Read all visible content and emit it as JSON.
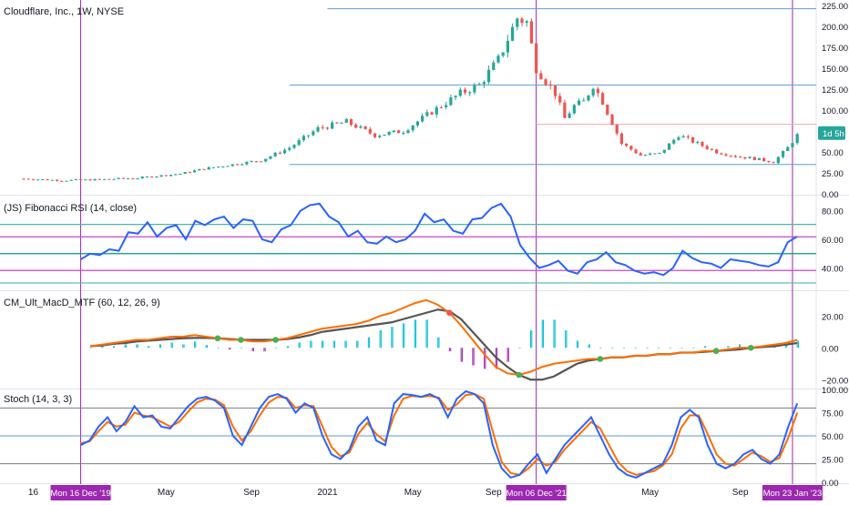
{
  "chart_data": [
    {
      "type": "candlestick",
      "title": "Cloudflare, Inc., 1W, NYSE",
      "ylim": [
        0,
        225
      ],
      "y_ticks": [
        0,
        25,
        50,
        75,
        100,
        125,
        150,
        175,
        200,
        225
      ],
      "y_tick_labels": [
        "0.00",
        "25.00",
        "50.00",
        "75.00",
        "100.00",
        "125.00",
        "150.00",
        "175.00",
        "200.00",
        "225.00"
      ],
      "countdown_label": "1d 5h",
      "last_value": 72,
      "hlines": [
        {
          "value": 221,
          "color": "#5b9bd5"
        },
        {
          "value": 130,
          "color": "#5b9bd5"
        },
        {
          "value": 83,
          "color": "#f4a6a6"
        },
        {
          "value": 35,
          "color": "#5b9bd5"
        }
      ],
      "series_close": [
        {
          "t": 0,
          "v": 18
        },
        {
          "t": 8,
          "v": 16
        },
        {
          "t": 16,
          "v": 17
        },
        {
          "t": 24,
          "v": 19
        },
        {
          "t": 33,
          "v": 24
        },
        {
          "t": 38,
          "v": 30
        },
        {
          "t": 44,
          "v": 35
        },
        {
          "t": 50,
          "v": 40
        },
        {
          "t": 56,
          "v": 55
        },
        {
          "t": 62,
          "v": 78
        },
        {
          "t": 68,
          "v": 86
        },
        {
          "t": 74,
          "v": 70
        },
        {
          "t": 80,
          "v": 75
        },
        {
          "t": 86,
          "v": 98
        },
        {
          "t": 92,
          "v": 120
        },
        {
          "t": 96,
          "v": 130
        },
        {
          "t": 100,
          "v": 160
        },
        {
          "t": 104,
          "v": 210
        },
        {
          "t": 106,
          "v": 205
        },
        {
          "t": 108,
          "v": 150
        },
        {
          "t": 112,
          "v": 120
        },
        {
          "t": 114,
          "v": 90
        },
        {
          "t": 116,
          "v": 105
        },
        {
          "t": 118,
          "v": 110
        },
        {
          "t": 120,
          "v": 130
        },
        {
          "t": 122,
          "v": 110
        },
        {
          "t": 126,
          "v": 60
        },
        {
          "t": 130,
          "v": 46
        },
        {
          "t": 134,
          "v": 48
        },
        {
          "t": 138,
          "v": 70
        },
        {
          "t": 142,
          "v": 60
        },
        {
          "t": 146,
          "v": 50
        },
        {
          "t": 150,
          "v": 45
        },
        {
          "t": 154,
          "v": 42
        },
        {
          "t": 158,
          "v": 38
        },
        {
          "t": 161,
          "v": 55
        },
        {
          "t": 163,
          "v": 70
        }
      ]
    },
    {
      "type": "line",
      "title": "(JS) Fibonacci RSI (14, close)",
      "ylim": [
        25,
        90
      ],
      "y_ticks": [
        40,
        60,
        80
      ],
      "y_tick_labels": [
        "40.00",
        "60.00",
        "80.00"
      ],
      "hlines": [
        {
          "value": 70.5,
          "color": "#4db6ac"
        },
        {
          "value": 61.8,
          "color": "#cc44cc"
        },
        {
          "value": 50,
          "color": "#009688"
        },
        {
          "value": 38.2,
          "color": "#cc44cc"
        },
        {
          "value": 29.5,
          "color": "#4db6ac"
        }
      ],
      "series": [
        {
          "values": [
            46,
            50,
            49,
            53,
            52,
            65,
            64,
            72,
            62,
            68,
            70,
            60,
            73,
            70,
            74,
            76,
            68,
            74,
            73,
            60,
            58,
            67,
            70,
            80,
            84,
            85,
            76,
            72,
            62,
            66,
            58,
            57,
            62,
            58,
            60,
            66,
            78,
            72,
            74,
            66,
            64,
            74,
            75,
            82,
            85,
            76,
            56,
            47,
            40,
            42,
            45,
            38,
            36,
            44,
            46,
            51,
            44,
            42,
            38,
            36,
            37,
            35,
            40,
            52,
            47,
            44,
            43,
            40,
            46,
            45,
            44,
            42,
            41,
            44,
            58,
            62
          ]
        }
      ]
    },
    {
      "type": "line",
      "title": "CM_Ult_MacD_MTF (60, 12, 26, 9)",
      "ylim": [
        -25,
        35
      ],
      "y_ticks": [
        -20,
        0,
        20
      ],
      "y_tick_labels": [
        "−20.00",
        "0.00",
        "20.00"
      ],
      "series": [
        {
          "values": [
            1,
            2,
            3,
            4,
            5,
            5,
            6,
            7,
            7,
            8,
            7,
            6,
            5,
            5,
            4,
            4,
            5,
            6,
            8,
            10,
            12,
            13,
            14,
            15,
            17,
            20,
            22,
            25,
            28,
            30,
            27,
            22,
            14,
            5,
            -4,
            -12,
            -16,
            -17,
            -15,
            -12,
            -10,
            -9,
            -8,
            -7,
            -7,
            -6,
            -6,
            -5,
            -5,
            -4,
            -4,
            -3,
            -3,
            -2,
            -2,
            -1,
            0,
            0,
            1,
            2,
            3,
            5
          ]
        },
        {
          "values": [
            1,
            1.5,
            2.5,
            3,
            4,
            4.5,
            5,
            5.5,
            6,
            6.2,
            6.2,
            6,
            5.5,
            5,
            5,
            5,
            5,
            5.5,
            6.5,
            8,
            10,
            11,
            12,
            13,
            14,
            15,
            16,
            18,
            20,
            22,
            24,
            23,
            18,
            10,
            2,
            -6,
            -12,
            -17,
            -20,
            -20,
            -18,
            -14,
            -10,
            -8,
            -7,
            -6,
            -6,
            -5,
            -5,
            -4,
            -4,
            -3,
            -3,
            -2.5,
            -2,
            -1.5,
            -1,
            0,
            0.5,
            1,
            2,
            3
          ]
        }
      ]
    },
    {
      "type": "line",
      "title": "Stoch (14, 3, 3)",
      "ylim": [
        0,
        100
      ],
      "y_ticks": [
        0,
        25,
        50,
        75,
        100
      ],
      "y_tick_labels": [
        "0.00",
        "25.00",
        "50.00",
        "75.00",
        "100.00"
      ],
      "hlines": [
        {
          "value": 80,
          "color": "#787b86"
        },
        {
          "value": 50,
          "color": "#5b9bd5"
        },
        {
          "value": 20,
          "color": "#787b86"
        }
      ],
      "series": [
        {
          "values": [
            40,
            45,
            60,
            70,
            55,
            65,
            82,
            70,
            72,
            60,
            58,
            70,
            82,
            90,
            92,
            88,
            80,
            50,
            40,
            60,
            80,
            92,
            95,
            90,
            75,
            85,
            80,
            50,
            30,
            25,
            35,
            60,
            70,
            45,
            40,
            85,
            95,
            94,
            92,
            95,
            90,
            70,
            90,
            98,
            95,
            85,
            40,
            15,
            5,
            8,
            20,
            30,
            10,
            25,
            40,
            50,
            60,
            70,
            50,
            30,
            15,
            8,
            5,
            10,
            15,
            20,
            40,
            70,
            78,
            70,
            40,
            20,
            15,
            20,
            30,
            35,
            25,
            20,
            30,
            60,
            85
          ]
        },
        {
          "values": [
            42,
            44,
            55,
            65,
            60,
            62,
            75,
            72,
            70,
            65,
            60,
            65,
            76,
            86,
            90,
            89,
            83,
            60,
            45,
            55,
            72,
            86,
            92,
            91,
            80,
            83,
            82,
            60,
            38,
            28,
            32,
            52,
            64,
            52,
            44,
            72,
            90,
            93,
            92,
            93,
            91,
            78,
            84,
            94,
            95,
            90,
            55,
            22,
            10,
            8,
            15,
            25,
            18,
            22,
            35,
            45,
            55,
            65,
            58,
            40,
            22,
            12,
            8,
            10,
            12,
            18,
            30,
            58,
            72,
            72,
            52,
            30,
            20,
            18,
            25,
            32,
            28,
            22,
            26,
            48,
            75
          ]
        }
      ]
    }
  ],
  "x_axis": {
    "labels": [
      {
        "text": "16",
        "t": 2
      },
      {
        "text": "May",
        "t": 30
      },
      {
        "text": "Sep",
        "t": 48
      },
      {
        "text": "2021",
        "t": 64
      },
      {
        "text": "May",
        "t": 82
      },
      {
        "text": "Sep",
        "t": 99
      },
      {
        "text": "May",
        "t": 132
      },
      {
        "text": "Sep",
        "t": 151
      }
    ],
    "markers": [
      {
        "text": "Mon 16 Dec '19",
        "t": 12
      },
      {
        "text": "Mon 06 Dec '21",
        "t": 108
      },
      {
        "text": "Mon 23 Jan '23",
        "t": 162
      }
    ]
  },
  "colors": {
    "price_up": "#26a69a",
    "price_down": "#ef5350",
    "rsi_line": "#2962ff",
    "macd_fast": "#ff6d00",
    "macd_signal": "#4caf50",
    "hist_up": "#00bcd4",
    "hist_down": "#9c27b0",
    "stoch_k": "#2962ff",
    "stoch_d": "#ff6d00",
    "vline": "#9c27b0",
    "marker_bg": "#9c27b0",
    "countdown_bg": "#26a69a"
  }
}
